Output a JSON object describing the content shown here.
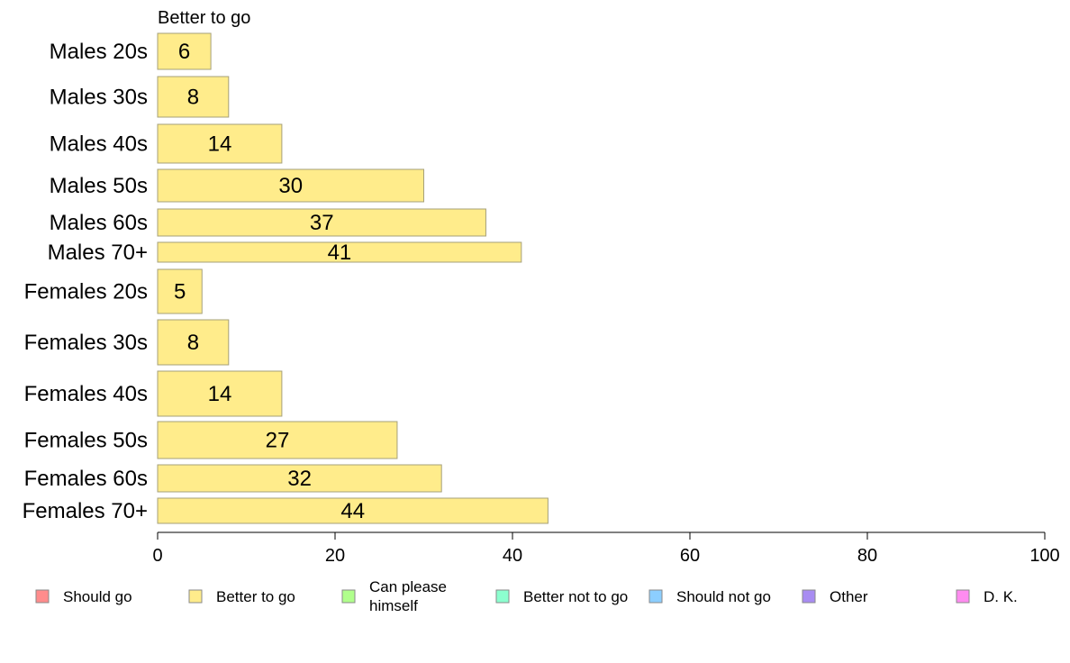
{
  "chart_data": {
    "type": "bar",
    "orientation": "horizontal",
    "panel_title": "Better to go",
    "categories": [
      "Males 20s",
      "Males 30s",
      "Males 40s",
      "Males 50s",
      "Males 60s",
      "Males 70+",
      "Females 20s",
      "Females 30s",
      "Females 40s",
      "Females 50s",
      "Females 60s",
      "Females 70+"
    ],
    "series": [
      {
        "name": "Better to go",
        "values": [
          6,
          8,
          14,
          30,
          37,
          41,
          5,
          8,
          14,
          27,
          32,
          44
        ]
      }
    ],
    "xlim": [
      0,
      100
    ],
    "xticks": [
      0,
      20,
      40,
      60,
      80,
      100
    ],
    "grid": false,
    "legend_position": "bottom",
    "legend": [
      {
        "name": "Should go",
        "color": "#ff8c8c"
      },
      {
        "name": "Better to go",
        "color": "#ffec8b"
      },
      {
        "name": "Can please himself",
        "color": "#b0ff8c"
      },
      {
        "name": "Better not to go",
        "color": "#8cffcf"
      },
      {
        "name": "Should not go",
        "color": "#8cceff"
      },
      {
        "name": "Other",
        "color": "#a88cf2"
      },
      {
        "name": "D. K.",
        "color": "#ff8cf0"
      }
    ],
    "bar_color": "#ffec8b",
    "bar_edge_color": "#a6a07a"
  }
}
